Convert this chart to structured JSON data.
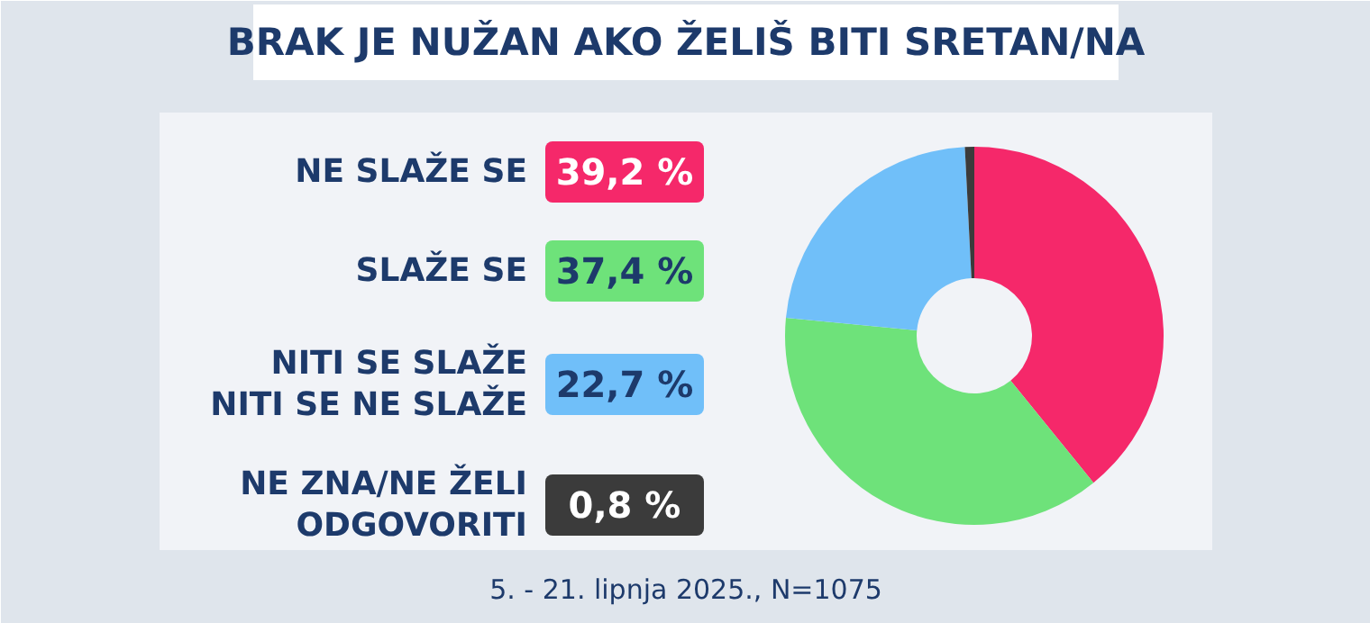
{
  "chart_data": {
    "type": "donut",
    "title": "BRAK JE NUŽAN AKO ŽELIŠ BITI SRETAN/NA",
    "categories": [
      "NE SLAŽE SE",
      "SLAŽE SE",
      "NITI SE SLAŽE\nNITI SE NE SLAŽE",
      "NE ZNA/NE ŽELI\nODGOVORITI"
    ],
    "values": [
      39.2,
      37.4,
      22.7,
      0.8
    ],
    "value_labels": [
      "39,2 %",
      "37,4 %",
      "22,7 %",
      "0,8 %"
    ],
    "colors": [
      "#f5286a",
      "#6ee27a",
      "#70bff9",
      "#3b3b3b"
    ],
    "legend": "left",
    "annotations": [
      "5. - 21. lipnja 2025., N=1075"
    ]
  }
}
